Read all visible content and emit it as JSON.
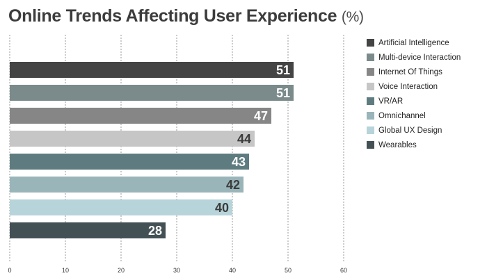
{
  "chart_data": {
    "type": "bar",
    "orientation": "horizontal",
    "title": "Online Trends Affecting User Experience",
    "title_unit": "(%)",
    "xlabel": "",
    "ylabel": "",
    "xlim": [
      0,
      60
    ],
    "x_ticks": [
      "0",
      "10",
      "20",
      "30",
      "40",
      "50",
      "60"
    ],
    "grid": "vertical-dashed",
    "legend_position": "right",
    "categories": [
      "Artificial Intelligence",
      "Multi-device Interaction",
      "Internet Of Things",
      "Voice Interaction",
      "VR/AR",
      "Omnichannel",
      "Global UX Design",
      "Wearables"
    ],
    "values": [
      51,
      51,
      47,
      44,
      43,
      42,
      40,
      28
    ],
    "colors": [
      "#444444",
      "#7b8a8b",
      "#868686",
      "#c6c6c6",
      "#5e7c80",
      "#9ab5b9",
      "#b7d4da",
      "#435155"
    ],
    "label_colors": [
      "#ffffff",
      "#ffffff",
      "#ffffff",
      "#3c3c3c",
      "#ffffff",
      "#3c3c3c",
      "#3c3c3c",
      "#ffffff"
    ]
  }
}
